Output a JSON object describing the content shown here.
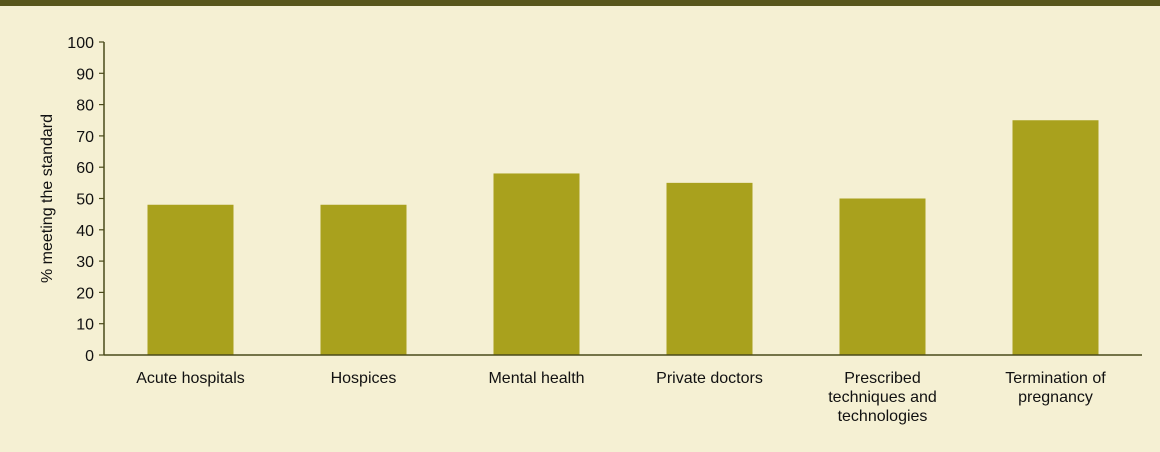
{
  "colors": {
    "background": "#f5f0d3",
    "top_band": "#58561c",
    "bar": "#a9a11d",
    "axis": "#4a4a1a"
  },
  "chart_data": {
    "type": "bar",
    "categories": [
      [
        "Acute hospitals"
      ],
      [
        "Hospices"
      ],
      [
        "Mental health"
      ],
      [
        "Private doctors"
      ],
      [
        "Prescribed",
        "techniques and",
        "technologies"
      ],
      [
        "Termination of",
        "pregnancy"
      ]
    ],
    "values": [
      48,
      48,
      58,
      55,
      50,
      75
    ],
    "ylabel": "% meeting the standard",
    "ylim": [
      0,
      100
    ],
    "yticks": [
      0,
      10,
      20,
      30,
      40,
      50,
      60,
      70,
      80,
      90,
      100
    ],
    "grid": false,
    "legend": "none"
  }
}
